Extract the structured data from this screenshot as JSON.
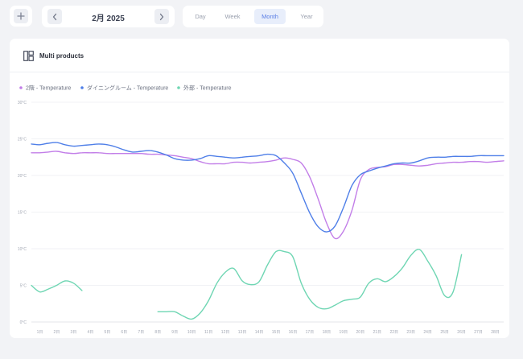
{
  "toolbar": {
    "add_icon": "plus-icon",
    "prev_icon": "chevron-left-icon",
    "next_icon": "chevron-right-icon",
    "date_label": "2月 2025",
    "tabs": [
      {
        "label": "Day",
        "active": false
      },
      {
        "label": "Week",
        "active": false
      },
      {
        "label": "Month",
        "active": true
      },
      {
        "label": "Year",
        "active": false
      }
    ]
  },
  "card": {
    "icon": "layout-panels-icon",
    "title": "Multi products"
  },
  "chart_data": {
    "type": "line",
    "y_ticks": [
      "0°C",
      "5°C",
      "10°C",
      "15°C",
      "20°C",
      "25°C",
      "30°C"
    ],
    "ylim": [
      0,
      30
    ],
    "grid": true,
    "legend_placement": "top-left",
    "categories": [
      "1日",
      "2日",
      "3日",
      "4日",
      "5日",
      "6日",
      "7日",
      "8日",
      "9日",
      "10日",
      "11日",
      "12日",
      "13日",
      "14日",
      "15日",
      "16日",
      "17日",
      "18日",
      "19日",
      "20日",
      "21日",
      "22日",
      "23日",
      "24日",
      "25日",
      "26日",
      "27日",
      "28日"
    ],
    "x": [
      0.5,
      1,
      1.5,
      2,
      2.5,
      3,
      3.5,
      4,
      4.5,
      5,
      5.5,
      6,
      6.5,
      7,
      7.5,
      8,
      8.5,
      9,
      9.5,
      10,
      10.5,
      11,
      11.5,
      12,
      12.5,
      13,
      13.5,
      14,
      14.5,
      15,
      15.5,
      16,
      16.5,
      17,
      17.5,
      18,
      18.5,
      19,
      19.5,
      20,
      20.5,
      21,
      21.5,
      22,
      22.5,
      23,
      23.5,
      24,
      24.5,
      25,
      25.5,
      26,
      26.5,
      27,
      27.5,
      28,
      28.5
    ],
    "series": [
      {
        "name": "2階 - Temperature",
        "color": "#c27ee8",
        "values": [
          23.1,
          23.1,
          23.2,
          23.3,
          23.1,
          23.0,
          23.1,
          23.1,
          23.1,
          23.0,
          23.0,
          23.0,
          23.0,
          23.0,
          22.9,
          22.9,
          22.8,
          22.7,
          22.5,
          22.3,
          21.9,
          21.6,
          21.6,
          21.6,
          21.8,
          21.8,
          21.7,
          21.8,
          21.9,
          22.1,
          22.4,
          22.2,
          21.7,
          19.8,
          16.8,
          13.5,
          11.4,
          12.4,
          15.2,
          19.4,
          20.8,
          21.1,
          21.2,
          21.5,
          21.5,
          21.4,
          21.3,
          21.4,
          21.6,
          21.7,
          21.8,
          21.8,
          21.9,
          21.9,
          21.8,
          21.9,
          22.0
        ]
      },
      {
        "name": "ダイニングルーム - Temperature",
        "color": "#4f7fe8",
        "values": [
          24.3,
          24.2,
          24.4,
          24.5,
          24.2,
          24.0,
          24.1,
          24.2,
          24.3,
          24.2,
          23.9,
          23.5,
          23.2,
          23.3,
          23.4,
          23.2,
          22.8,
          22.3,
          22.1,
          22.1,
          22.3,
          22.7,
          22.6,
          22.5,
          22.4,
          22.5,
          22.6,
          22.7,
          22.9,
          22.7,
          21.7,
          20.3,
          17.6,
          14.9,
          13.0,
          12.3,
          13.1,
          15.6,
          18.6,
          20.1,
          20.6,
          21.0,
          21.3,
          21.6,
          21.7,
          21.7,
          22.0,
          22.4,
          22.5,
          22.5,
          22.6,
          22.6,
          22.6,
          22.7,
          22.7,
          22.7,
          22.7
        ]
      },
      {
        "name": "外部 - Temperature",
        "color": "#6fd6b3",
        "values": [
          5.0,
          4.1,
          4.5,
          5.0,
          5.6,
          5.3,
          4.3,
          null,
          null,
          null,
          null,
          null,
          null,
          null,
          null,
          1.4,
          1.4,
          1.4,
          0.8,
          0.4,
          1.2,
          2.9,
          5.3,
          6.8,
          7.3,
          5.6,
          5.1,
          5.5,
          7.8,
          9.6,
          9.6,
          8.9,
          5.3,
          3.1,
          2.0,
          1.8,
          2.3,
          2.9,
          3.1,
          3.4,
          5.3,
          5.9,
          5.5,
          6.2,
          7.4,
          9.1,
          9.9,
          8.3,
          6.3,
          3.6,
          4.1,
          9.2,
          null,
          null,
          null,
          null,
          null
        ]
      }
    ]
  }
}
